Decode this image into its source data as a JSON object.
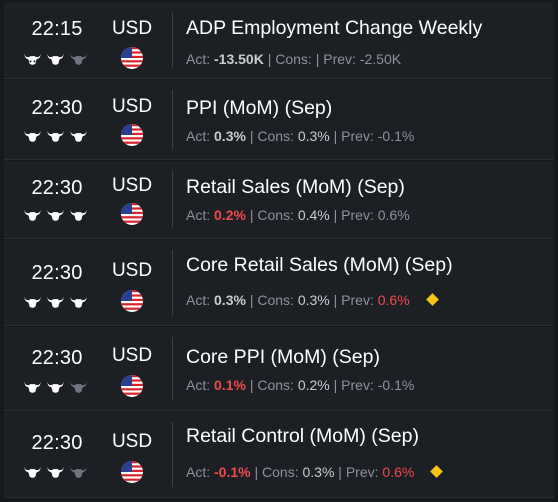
{
  "colors": {
    "accent_red": "#f24a4a",
    "diamond": "#f5c518",
    "bull_active": "#ffffff",
    "bull_inactive": "#707480"
  },
  "events": [
    {
      "time": "22:15",
      "currency": "USD",
      "importance": 2,
      "title": "ADP Employment Change Weekly",
      "act_label": "Act:",
      "act": "-13.50K",
      "act_red": false,
      "cons_label": "Cons:",
      "cons": "",
      "prev_label": "Prev:",
      "prev": "-2.50K",
      "prev_red": false,
      "diamond": false,
      "flag_icon": "us-flag-icon"
    },
    {
      "time": "22:30",
      "currency": "USD",
      "importance": 3,
      "title": "PPI (MoM) (Sep)",
      "act_label": "Act:",
      "act": "0.3%",
      "act_red": false,
      "cons_label": "Cons:",
      "cons": "0.3%",
      "prev_label": "Prev:",
      "prev": "-0.1%",
      "prev_red": false,
      "diamond": false,
      "flag_icon": "us-flag-icon"
    },
    {
      "time": "22:30",
      "currency": "USD",
      "importance": 3,
      "title": "Retail Sales (MoM) (Sep)",
      "act_label": "Act:",
      "act": "0.2%",
      "act_red": true,
      "cons_label": "Cons:",
      "cons": "0.4%",
      "prev_label": "Prev:",
      "prev": "0.6%",
      "prev_red": false,
      "diamond": false,
      "flag_icon": "us-flag-icon"
    },
    {
      "time": "22:30",
      "currency": "USD",
      "importance": 3,
      "title": "Core Retail Sales (MoM) (Sep)",
      "act_label": "Act:",
      "act": "0.3%",
      "act_red": false,
      "cons_label": "Cons:",
      "cons": "0.3%",
      "prev_label": "Prev:",
      "prev": "0.6%",
      "prev_red": true,
      "diamond": true,
      "flag_icon": "us-flag-icon"
    },
    {
      "time": "22:30",
      "currency": "USD",
      "importance": 2,
      "title": "Core PPI (MoM) (Sep)",
      "act_label": "Act:",
      "act": "0.1%",
      "act_red": true,
      "cons_label": "Cons:",
      "cons": "0.2%",
      "prev_label": "Prev:",
      "prev": "-0.1%",
      "prev_red": false,
      "diamond": false,
      "flag_icon": "us-flag-icon"
    },
    {
      "time": "22:30",
      "currency": "USD",
      "importance": 2,
      "title": "Retail Control (MoM) (Sep)",
      "act_label": "Act:",
      "act": "-0.1%",
      "act_red": true,
      "cons_label": "Cons:",
      "cons": "0.3%",
      "prev_label": "Prev:",
      "prev": "0.6%",
      "prev_red": true,
      "diamond": true,
      "flag_icon": "us-flag-icon"
    }
  ]
}
